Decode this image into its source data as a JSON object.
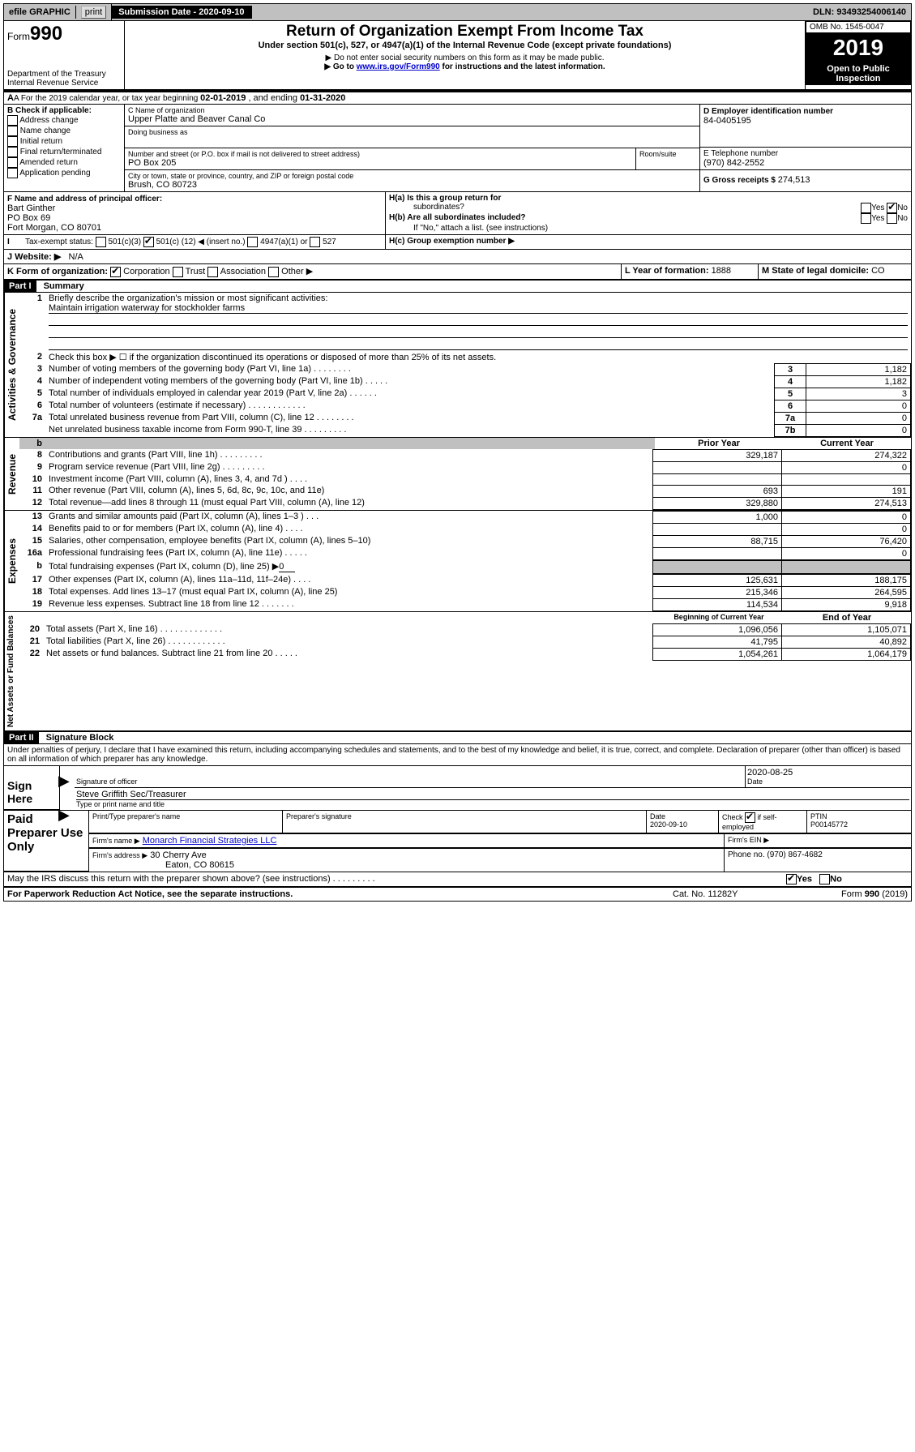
{
  "topbar": {
    "efile": "efile GRAPHIC",
    "print": "print",
    "sub_label": "Submission Date - 2020-09-10",
    "dln": "DLN: 93493254006140"
  },
  "header": {
    "form": "990",
    "form_prefix": "Form",
    "title": "Return of Organization Exempt From Income Tax",
    "subtitle": "Under section 501(c), 527, or 4947(a)(1) of the Internal Revenue Code (except private foundations)",
    "note1": "▶ Do not enter social security numbers on this form as it may be made public.",
    "note2_pre": "▶ Go to ",
    "note2_link": "www.irs.gov/Form990",
    "note2_post": " for instructions and the latest information.",
    "dept": "Department of the Treasury",
    "irs": "Internal Revenue Service",
    "omb": "OMB No. 1545-0047",
    "year": "2019",
    "open": "Open to Public",
    "inspection": "Inspection"
  },
  "lineA": {
    "text_a": "A For the 2019 calendar year, or tax year beginning ",
    "begin": "02-01-2019",
    "mid": " , and ending ",
    "end": "01-31-2020"
  },
  "boxB": {
    "label": "B Check if applicable:",
    "opts": [
      "Address change",
      "Name change",
      "Initial return",
      "Final return/terminated",
      "Amended return",
      "Application pending"
    ]
  },
  "boxC": {
    "name_label": "C Name of organization",
    "name": "Upper Platte and Beaver Canal Co",
    "dba_label": "Doing business as",
    "addr_label": "Number and street (or P.O. box if mail is not delivered to street address)",
    "room": "Room/suite",
    "addr": "PO Box 205",
    "city_label": "City or town, state or province, country, and ZIP or foreign postal code",
    "city": "Brush, CO  80723"
  },
  "boxD": {
    "label": "D Employer identification number",
    "val": "84-0405195"
  },
  "boxE": {
    "label": "E Telephone number",
    "val": "(970) 842-2552"
  },
  "boxG": {
    "label": "G Gross receipts $ ",
    "val": "274,513"
  },
  "boxF": {
    "label": "F  Name and address of principal officer:",
    "name": "Bart Ginther",
    "addr1": "PO Box 69",
    "addr2": "Fort Morgan, CO  80701"
  },
  "boxH": {
    "a": "H(a)  Is this a group return for",
    "a2": "subordinates?",
    "b": "H(b)  Are all subordinates included?",
    "b2": "If \"No,\" attach a list. (see instructions)",
    "c": "H(c)  Group exemption number ▶"
  },
  "boxI": {
    "label": "Tax-exempt status:",
    "c3": "501(c)(3)",
    "c": "501(c) (",
    "cnum": "12",
    "c2": ") ◀ (insert no.)",
    "a1": "4947(a)(1) or",
    "s527": "527"
  },
  "boxJ": {
    "label": "J  Website: ▶",
    "val": "N/A"
  },
  "boxK": {
    "label": "K Form of organization:",
    "corp": "Corporation",
    "trust": "Trust",
    "assoc": "Association",
    "other": "Other ▶"
  },
  "boxL": {
    "label": "L Year of formation: ",
    "val": "1888"
  },
  "boxM": {
    "label": "M State of legal domicile: ",
    "val": "CO"
  },
  "parts": {
    "p1": "Part I",
    "p1t": "Summary",
    "p2": "Part II",
    "p2t": "Signature Block"
  },
  "vlabels": {
    "ag": "Activities & Governance",
    "rev": "Revenue",
    "exp": "Expenses",
    "net": "Net Assets or Fund Balances"
  },
  "l1": {
    "q": "Briefly describe the organization's mission or most significant activities:",
    "a": "Maintain irrigation waterway for stockholder farms"
  },
  "l2": "Check this box ▶ ☐  if the organization discontinued its operations or disposed of more than 25% of its net assets.",
  "lines_ag": [
    {
      "n": "3",
      "t": "Number of voting members of the governing body (Part VI, line 1a)  .  .  .  .  .  .  .  .",
      "b": "3",
      "v": "1,182"
    },
    {
      "n": "4",
      "t": "Number of independent voting members of the governing body (Part VI, line 1b)  .  .  .  .  .",
      "b": "4",
      "v": "1,182"
    },
    {
      "n": "5",
      "t": "Total number of individuals employed in calendar year 2019 (Part V, line 2a)  .  .  .  .  .  .",
      "b": "5",
      "v": "3"
    },
    {
      "n": "6",
      "t": "Total number of volunteers (estimate if necessary)  .  .  .  .  .  .  .  .  .  .  .  .",
      "b": "6",
      "v": "0"
    },
    {
      "n": "7a",
      "t": "Total unrelated business revenue from Part VIII, column (C), line 12  .  .  .  .  .  .  .  .",
      "b": "7a",
      "v": "0"
    },
    {
      "n": "",
      "t": "Net unrelated business taxable income from Form 990-T, line 39  .  .  .  .  .  .  .  .  .",
      "b": "7b",
      "v": "0"
    }
  ],
  "colh": {
    "py": "Prior Year",
    "cy": "Current Year",
    "bcy": "Beginning of Current Year",
    "eoy": "End of Year"
  },
  "lines_rev": [
    {
      "n": "8",
      "t": "Contributions and grants (Part VIII, line 1h)  .  .  .  .  .  .  .  .  .",
      "p": "329,187",
      "c": "274,322"
    },
    {
      "n": "9",
      "t": "Program service revenue (Part VIII, line 2g)  .  .  .  .  .  .  .  .  .",
      "p": "",
      "c": "0"
    },
    {
      "n": "10",
      "t": "Investment income (Part VIII, column (A), lines 3, 4, and 7d )  .  .  .  .",
      "p": "",
      "c": ""
    },
    {
      "n": "11",
      "t": "Other revenue (Part VIII, column (A), lines 5, 6d, 8c, 9c, 10c, and 11e)",
      "p": "693",
      "c": "191"
    },
    {
      "n": "12",
      "t": "Total revenue—add lines 8 through 11 (must equal Part VIII, column (A), line 12)",
      "p": "329,880",
      "c": "274,513"
    }
  ],
  "lines_exp": [
    {
      "n": "13",
      "t": "Grants and similar amounts paid (Part IX, column (A), lines 1–3 )  .  .  .",
      "p": "1,000",
      "c": "0"
    },
    {
      "n": "14",
      "t": "Benefits paid to or for members (Part IX, column (A), line 4)  .  .  .  .",
      "p": "",
      "c": "0"
    },
    {
      "n": "15",
      "t": "Salaries, other compensation, employee benefits (Part IX, column (A), lines 5–10)",
      "p": "88,715",
      "c": "76,420"
    },
    {
      "n": "16a",
      "t": "Professional fundraising fees (Part IX, column (A), line 11e)  .  .  .  .  .",
      "p": "",
      "c": "0"
    }
  ],
  "l16b": "Total fundraising expenses (Part IX, column (D), line 25) ▶",
  "l16b_v": "0",
  "lines_exp2": [
    {
      "n": "17",
      "t": "Other expenses (Part IX, column (A), lines 11a–11d, 11f–24e)  .  .  .  .",
      "p": "125,631",
      "c": "188,175"
    },
    {
      "n": "18",
      "t": "Total expenses. Add lines 13–17 (must equal Part IX, column (A), line 25)",
      "p": "215,346",
      "c": "264,595"
    },
    {
      "n": "19",
      "t": "Revenue less expenses. Subtract line 18 from line 12  .  .  .  .  .  .  .",
      "p": "114,534",
      "c": "9,918"
    }
  ],
  "lines_net": [
    {
      "n": "20",
      "t": "Total assets (Part X, line 16)  .  .  .  .  .  .  .  .  .  .  .  .  .",
      "p": "1,096,056",
      "c": "1,105,071"
    },
    {
      "n": "21",
      "t": "Total liabilities (Part X, line 26)  .  .  .  .  .  .  .  .  .  .  .  .",
      "p": "41,795",
      "c": "40,892"
    },
    {
      "n": "22",
      "t": "Net assets or fund balances. Subtract line 21 from line 20  .  .  .  .  .",
      "p": "1,054,261",
      "c": "1,064,179"
    }
  ],
  "perjury": "Under penalties of perjury, I declare that I have examined this return, including accompanying schedules and statements, and to the best of my knowledge and belief, it is true, correct, and complete. Declaration of preparer (other than officer) is based on all information of which preparer has any knowledge.",
  "sign": {
    "here": "Sign Here",
    "sig_label": "Signature of officer",
    "date": "2020-08-25",
    "date_label": "Date",
    "name": "Steve Griffith Sec/Treasurer",
    "name_label": "Type or print name and title"
  },
  "paid": {
    "label": "Paid Preparer Use Only",
    "h1": "Print/Type preparer's name",
    "h2": "Preparer's signature",
    "h3": "Date",
    "h3v": "2020-09-10",
    "h4a": "Check",
    "h4b": "if self-employed",
    "h5": "PTIN",
    "h5v": "P00145772",
    "firm_label": "Firm's name      ▶",
    "firm": "Monarch Financial Strategies LLC",
    "ein_label": "Firm's EIN ▶",
    "addr_label": "Firm's address ▶",
    "addr1": "30 Cherry Ave",
    "addr2": "Eaton, CO  80615",
    "phone_label": "Phone no. ",
    "phone": "(970) 867-4682"
  },
  "discuss": "May the IRS discuss this return with the preparer shown above? (see instructions)   .    .    .    .    .    .    .    .    .",
  "footer": {
    "pra": "For Paperwork Reduction Act Notice, see the separate instructions.",
    "cat": "Cat. No. 11282Y",
    "form": "Form 990 (2019)"
  }
}
